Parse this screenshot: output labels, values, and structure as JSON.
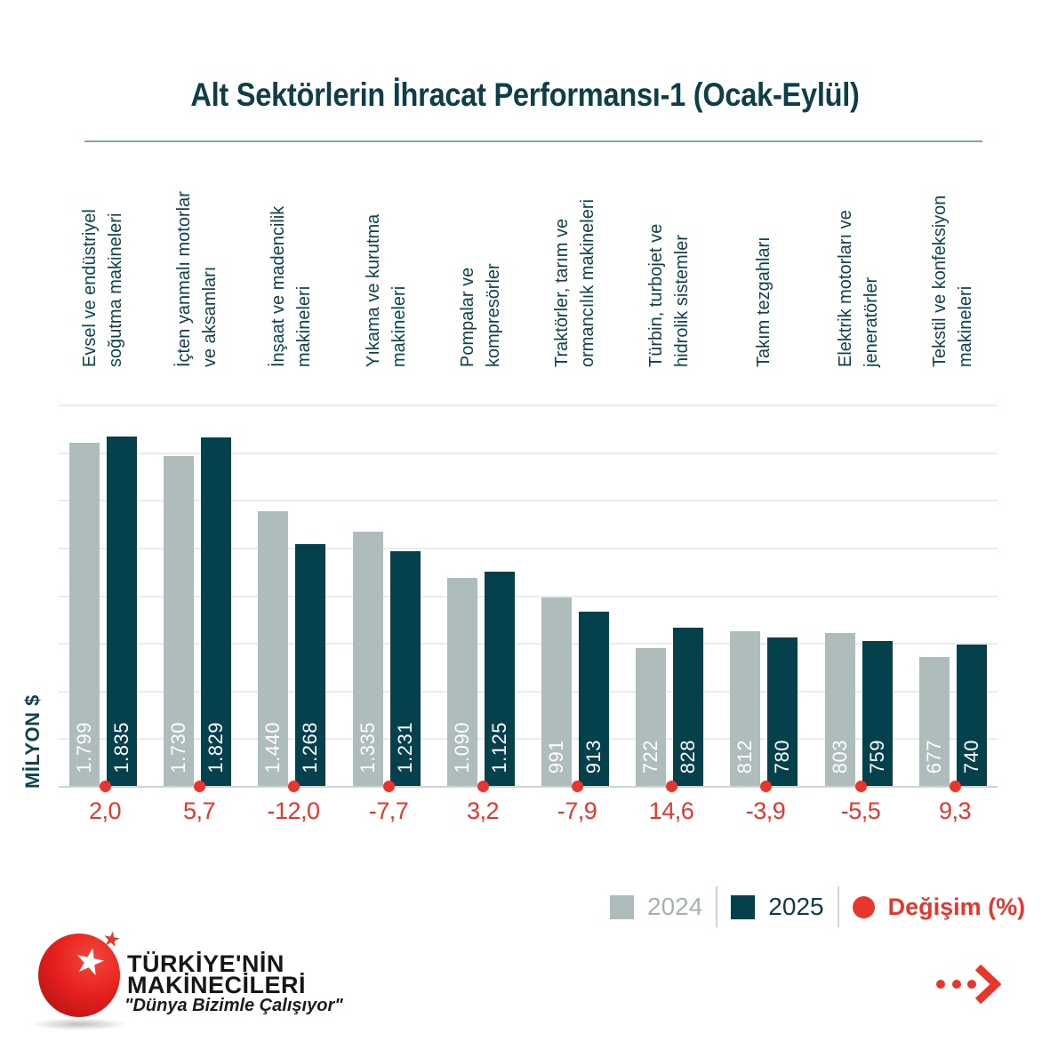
{
  "title": "Alt Sektörlerin İhracat Performansı-1 (Ocak-Eylül)",
  "y_axis_label": "MİLYON $",
  "chart_data": {
    "type": "bar",
    "title": "Alt Sektörlerin İhracat Performansı-1 (Ocak-Eylül)",
    "ylabel": "MİLYON $",
    "ylim": [
      0,
      2000
    ],
    "gridline_step": 250,
    "grid": true,
    "legend_position": "bottom-right",
    "categories": [
      "Evsel ve endüstriyel\nsoğutma makineleri",
      "İçten yanmalı motorlar\nve aksamları",
      "İnşaat ve madencilik\nmakineleri",
      "Yıkama ve kurutma\nmakineleri",
      "Pompalar ve\nkompresörler",
      "Traktörler, tarım ve\normancılık makineleri",
      "Türbin, turbojet ve\nhidrolik sistemler",
      "Takım tezgahları",
      "Elektrik motorları ve\njeneratörler",
      "Tekstil ve konfeksiyon\nmakineleri"
    ],
    "series": [
      {
        "name": "2024",
        "color": "#aebcbc",
        "values": [
          1799,
          1730,
          1440,
          1335,
          1090,
          991,
          722,
          812,
          803,
          677
        ]
      },
      {
        "name": "2025",
        "color": "#04414c",
        "values": [
          1835,
          1829,
          1268,
          1231,
          1125,
          913,
          828,
          780,
          759,
          740
        ]
      }
    ],
    "change_series": {
      "name": "Değişim (%)",
      "color": "#e8362c",
      "values": [
        2.0,
        5.7,
        -12.0,
        -7.7,
        3.2,
        -7.9,
        14.6,
        -3.9,
        -5.5,
        9.3
      ],
      "values_display": [
        "2,0",
        "5,7",
        "-12,0",
        "-7,7",
        "3,2",
        "-7,9",
        "14,6",
        "-3,9",
        "-5,5",
        "9,3"
      ]
    }
  },
  "legend": {
    "items": [
      {
        "label": "2024"
      },
      {
        "label": "2025"
      },
      {
        "label": "Değişim (%)"
      }
    ]
  },
  "logo": {
    "name_line1": "TÜRKİYE'NİN",
    "name_line2": "MAKİNECİLERİ",
    "tagline": "\"Dünya Bizimle Çalışıyor\"",
    "white_star_icon": "★",
    "red_star_icon": "★"
  },
  "colors": {
    "bar_2024": "#aebcbc",
    "bar_2025": "#04414c",
    "accent_red": "#e8362c",
    "teal_text": "#0d434d",
    "gridline": "#e9eceb",
    "baseline": "#ccd4d4"
  }
}
